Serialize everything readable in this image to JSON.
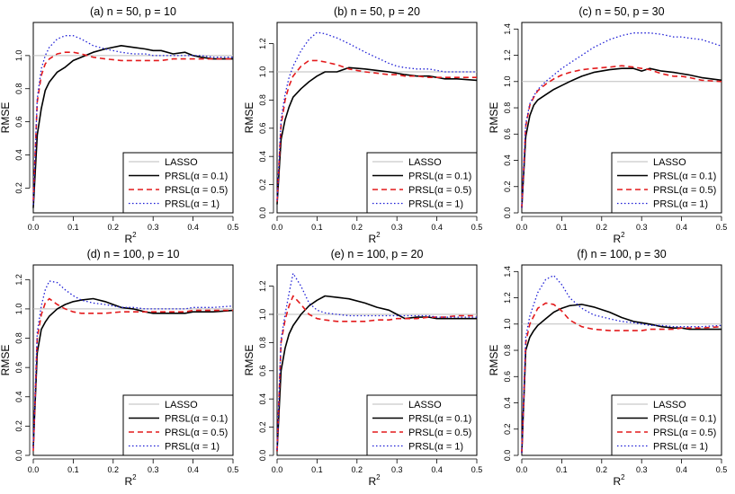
{
  "figure": {
    "description_free": true
  },
  "legend_labels": [
    "LASSO",
    "PRSL(α = 0.1)",
    "PRSL(α = 0.5)",
    "PRSL(α = 1)"
  ],
  "colors": {
    "lasso": "#bdbdbd",
    "a01": "#000000",
    "a05": "#e31a1c",
    "a1": "#1f1fd6",
    "axis": "#000000"
  },
  "chart_data": [
    {
      "type": "line",
      "title": "(a)  n = 50,  p = 10",
      "xlabel": "R²",
      "ylabel": "RMSE",
      "xlim": [
        0,
        0.5
      ],
      "ylim": [
        0.05,
        1.2
      ],
      "xticks": [
        0.0,
        0.1,
        0.2,
        0.3,
        0.4,
        0.5
      ],
      "yticks": [
        0.2,
        0.4,
        0.6,
        0.8,
        1.0
      ],
      "x": [
        0.0,
        0.01,
        0.02,
        0.03,
        0.04,
        0.06,
        0.08,
        0.1,
        0.12,
        0.15,
        0.18,
        0.22,
        0.25,
        0.28,
        0.3,
        0.32,
        0.35,
        0.38,
        0.4,
        0.42,
        0.45,
        0.5
      ],
      "series": [
        {
          "name": "LASSO",
          "values": [
            1,
            1,
            1,
            1,
            1,
            1,
            1,
            1,
            1,
            1,
            1,
            1,
            1,
            1,
            1,
            1,
            1,
            1,
            1,
            1,
            1,
            1
          ]
        },
        {
          "name": "PRSL(α = 0.1)",
          "values": [
            0.08,
            0.52,
            0.68,
            0.79,
            0.84,
            0.9,
            0.93,
            0.97,
            0.99,
            1.02,
            1.04,
            1.06,
            1.05,
            1.04,
            1.03,
            1.03,
            1.01,
            1.02,
            1.0,
            0.99,
            0.98,
            0.98
          ]
        },
        {
          "name": "PRSL(α = 0.5)",
          "values": [
            0.12,
            0.72,
            0.88,
            0.95,
            0.98,
            1.01,
            1.02,
            1.02,
            1.01,
            0.99,
            0.98,
            0.97,
            0.97,
            0.97,
            0.97,
            0.97,
            0.98,
            0.98,
            0.98,
            0.98,
            0.98,
            0.98
          ]
        },
        {
          "name": "PRSL(α = 1)",
          "values": [
            0.1,
            0.74,
            0.92,
            1.0,
            1.05,
            1.1,
            1.12,
            1.12,
            1.1,
            1.06,
            1.04,
            1.02,
            1.01,
            1.01,
            1.0,
            1.0,
            1.0,
            1.0,
            1.0,
            1.0,
            0.99,
            0.99
          ]
        }
      ]
    },
    {
      "type": "line",
      "title": "(b)  n = 50,  p = 20",
      "xlabel": "R²",
      "ylabel": "RMSE",
      "xlim": [
        0,
        0.5
      ],
      "ylim": [
        0,
        1.35
      ],
      "xticks": [
        0.0,
        0.1,
        0.2,
        0.3,
        0.4,
        0.5
      ],
      "yticks": [
        0.0,
        0.2,
        0.4,
        0.6,
        0.8,
        1.0,
        1.2
      ],
      "x": [
        0.0,
        0.01,
        0.02,
        0.03,
        0.04,
        0.06,
        0.08,
        0.1,
        0.12,
        0.15,
        0.18,
        0.22,
        0.25,
        0.28,
        0.3,
        0.32,
        0.35,
        0.38,
        0.4,
        0.42,
        0.45,
        0.5
      ],
      "series": [
        {
          "name": "LASSO",
          "values": [
            1,
            1,
            1,
            1,
            1,
            1,
            1,
            1,
            1,
            1,
            1,
            1,
            1,
            1,
            1,
            1,
            1,
            1,
            1,
            1,
            1,
            1
          ]
        },
        {
          "name": "PRSL(α = 0.1)",
          "values": [
            0.06,
            0.52,
            0.66,
            0.75,
            0.82,
            0.88,
            0.93,
            0.97,
            1.0,
            1.0,
            1.03,
            1.02,
            1.01,
            1.0,
            0.99,
            0.98,
            0.97,
            0.97,
            0.96,
            0.95,
            0.95,
            0.94
          ]
        },
        {
          "name": "PRSL(α = 0.5)",
          "values": [
            0.08,
            0.62,
            0.8,
            0.9,
            0.97,
            1.04,
            1.08,
            1.08,
            1.07,
            1.05,
            1.02,
            1.0,
            0.99,
            0.98,
            0.98,
            0.97,
            0.97,
            0.96,
            0.96,
            0.96,
            0.96,
            0.96
          ]
        },
        {
          "name": "PRSL(α = 1)",
          "values": [
            0.09,
            0.66,
            0.84,
            0.96,
            1.04,
            1.15,
            1.23,
            1.28,
            1.27,
            1.24,
            1.2,
            1.14,
            1.1,
            1.06,
            1.04,
            1.03,
            1.02,
            1.02,
            1.01,
            1.0,
            1.0,
            1.0
          ]
        }
      ]
    },
    {
      "type": "line",
      "title": "(c)  n = 50,  p = 30",
      "xlabel": "R²",
      "ylabel": "RMSE",
      "xlim": [
        0,
        0.5
      ],
      "ylim": [
        0,
        1.45
      ],
      "xticks": [
        0.0,
        0.1,
        0.2,
        0.3,
        0.4,
        0.5
      ],
      "yticks": [
        0.0,
        0.2,
        0.4,
        0.6,
        0.8,
        1.0,
        1.2,
        1.4
      ],
      "x": [
        0.0,
        0.01,
        0.02,
        0.03,
        0.04,
        0.06,
        0.08,
        0.1,
        0.12,
        0.15,
        0.18,
        0.22,
        0.25,
        0.28,
        0.3,
        0.32,
        0.35,
        0.38,
        0.4,
        0.42,
        0.45,
        0.5
      ],
      "series": [
        {
          "name": "LASSO",
          "values": [
            1,
            1,
            1,
            1,
            1,
            1,
            1,
            1,
            1,
            1,
            1,
            1,
            1,
            1,
            1,
            1,
            1,
            1,
            1,
            1,
            1,
            1
          ]
        },
        {
          "name": "PRSL(α = 0.1)",
          "values": [
            0.04,
            0.58,
            0.74,
            0.82,
            0.86,
            0.9,
            0.94,
            0.97,
            1.0,
            1.04,
            1.07,
            1.09,
            1.1,
            1.1,
            1.08,
            1.1,
            1.08,
            1.07,
            1.06,
            1.05,
            1.03,
            1.01
          ]
        },
        {
          "name": "PRSL(α = 0.5)",
          "values": [
            0.04,
            0.66,
            0.82,
            0.88,
            0.93,
            0.98,
            1.02,
            1.05,
            1.07,
            1.09,
            1.1,
            1.11,
            1.12,
            1.11,
            1.1,
            1.09,
            1.06,
            1.04,
            1.04,
            1.03,
            1.01,
            1.0
          ]
        },
        {
          "name": "PRSL(α = 1)",
          "values": [
            0.04,
            0.68,
            0.83,
            0.89,
            0.94,
            1.0,
            1.05,
            1.1,
            1.14,
            1.2,
            1.26,
            1.32,
            1.35,
            1.37,
            1.37,
            1.37,
            1.36,
            1.34,
            1.34,
            1.33,
            1.32,
            1.27
          ]
        }
      ]
    },
    {
      "type": "line",
      "title": "(d)  n = 100,  p = 10",
      "xlabel": "R²",
      "ylabel": "RMSE",
      "xlim": [
        0,
        0.5
      ],
      "ylim": [
        0,
        1.3
      ],
      "xticks": [
        0.0,
        0.1,
        0.2,
        0.3,
        0.4,
        0.5
      ],
      "yticks": [
        0.0,
        0.2,
        0.4,
        0.6,
        0.8,
        1.0,
        1.2
      ],
      "x": [
        0.0,
        0.01,
        0.02,
        0.03,
        0.04,
        0.06,
        0.08,
        0.1,
        0.12,
        0.15,
        0.18,
        0.22,
        0.25,
        0.28,
        0.3,
        0.32,
        0.35,
        0.38,
        0.4,
        0.42,
        0.45,
        0.5
      ],
      "series": [
        {
          "name": "LASSO",
          "values": [
            1,
            1,
            1,
            1,
            1,
            1,
            1,
            1,
            1,
            1,
            1,
            1,
            1,
            1,
            1,
            1,
            1,
            1,
            1,
            1,
            1,
            1
          ]
        },
        {
          "name": "PRSL(α = 0.1)",
          "values": [
            0.06,
            0.7,
            0.86,
            0.91,
            0.95,
            1.0,
            1.03,
            1.05,
            1.06,
            1.07,
            1.05,
            1.01,
            1.0,
            0.98,
            0.97,
            0.97,
            0.97,
            0.97,
            0.98,
            0.98,
            0.98,
            0.99
          ]
        },
        {
          "name": "PRSL(α = 0.5)",
          "values": [
            0.03,
            0.8,
            0.96,
            1.04,
            1.07,
            1.03,
            1.0,
            0.98,
            0.97,
            0.97,
            0.97,
            0.98,
            0.98,
            0.98,
            0.98,
            0.98,
            0.98,
            0.98,
            0.99,
            0.99,
            0.99,
            0.99
          ]
        },
        {
          "name": "PRSL(α = 1)",
          "values": [
            0.05,
            0.84,
            1.02,
            1.13,
            1.19,
            1.18,
            1.13,
            1.09,
            1.06,
            1.04,
            1.03,
            1.01,
            1.01,
            1.0,
            1.0,
            1.0,
            1.0,
            1.0,
            1.01,
            1.01,
            1.01,
            1.02
          ]
        }
      ]
    },
    {
      "type": "line",
      "title": "(e)  n = 100,  p = 20",
      "xlabel": "R²",
      "ylabel": "RMSE",
      "xlim": [
        0,
        0.5
      ],
      "ylim": [
        0,
        1.35
      ],
      "xticks": [
        0.0,
        0.1,
        0.2,
        0.3,
        0.4,
        0.5
      ],
      "yticks": [
        0.0,
        0.2,
        0.4,
        0.6,
        0.8,
        1.0,
        1.2
      ],
      "x": [
        0.0,
        0.01,
        0.02,
        0.03,
        0.04,
        0.06,
        0.08,
        0.1,
        0.12,
        0.15,
        0.18,
        0.22,
        0.25,
        0.28,
        0.3,
        0.32,
        0.35,
        0.38,
        0.4,
        0.42,
        0.45,
        0.5
      ],
      "series": [
        {
          "name": "LASSO",
          "values": [
            1,
            1,
            1,
            1,
            1,
            1,
            1,
            1,
            1,
            1,
            1,
            1,
            1,
            1,
            1,
            1,
            1,
            1,
            1,
            1,
            1,
            1
          ]
        },
        {
          "name": "PRSL(α = 0.1)",
          "values": [
            0.03,
            0.6,
            0.76,
            0.86,
            0.92,
            1.0,
            1.06,
            1.1,
            1.13,
            1.12,
            1.11,
            1.08,
            1.05,
            1.03,
            1.0,
            0.97,
            0.98,
            0.98,
            0.97,
            0.97,
            0.97,
            0.97
          ]
        },
        {
          "name": "PRSL(α = 0.5)",
          "values": [
            0.03,
            0.8,
            0.96,
            1.06,
            1.13,
            1.07,
            1.0,
            0.97,
            0.96,
            0.95,
            0.95,
            0.95,
            0.96,
            0.96,
            0.97,
            0.97,
            0.97,
            0.98,
            0.98,
            0.98,
            0.99,
            0.99
          ]
        },
        {
          "name": "PRSL(α = 1)",
          "values": [
            0.04,
            0.82,
            1.0,
            1.15,
            1.29,
            1.2,
            1.08,
            1.03,
            1.01,
            1.0,
            0.99,
            0.99,
            0.99,
            0.99,
            0.99,
            0.99,
            0.99,
            0.99,
            0.98,
            0.98,
            0.98,
            0.98
          ]
        }
      ]
    },
    {
      "type": "line",
      "title": "(f)  n = 100,  p = 30",
      "xlabel": "R²",
      "ylabel": "RMSE",
      "xlim": [
        0,
        0.5
      ],
      "ylim": [
        0,
        1.45
      ],
      "xticks": [
        0.0,
        0.1,
        0.2,
        0.3,
        0.4,
        0.5
      ],
      "yticks": [
        0.0,
        0.2,
        0.4,
        0.6,
        0.8,
        1.0,
        1.2,
        1.4
      ],
      "x": [
        0.0,
        0.01,
        0.02,
        0.03,
        0.04,
        0.06,
        0.08,
        0.1,
        0.12,
        0.15,
        0.18,
        0.22,
        0.25,
        0.28,
        0.3,
        0.32,
        0.35,
        0.38,
        0.4,
        0.42,
        0.45,
        0.5
      ],
      "series": [
        {
          "name": "LASSO",
          "values": [
            1,
            1,
            1,
            1,
            1,
            1,
            1,
            1,
            1,
            1,
            1,
            1,
            1,
            1,
            1,
            1,
            1,
            1,
            1,
            1,
            1,
            1
          ]
        },
        {
          "name": "PRSL(α = 0.1)",
          "values": [
            0.02,
            0.8,
            0.9,
            0.95,
            0.99,
            1.04,
            1.09,
            1.12,
            1.14,
            1.15,
            1.13,
            1.09,
            1.05,
            1.02,
            1.01,
            1.0,
            0.98,
            0.97,
            0.97,
            0.96,
            0.96,
            0.96
          ]
        },
        {
          "name": "PRSL(α = 0.5)",
          "values": [
            0.02,
            0.86,
            1.0,
            1.06,
            1.12,
            1.16,
            1.15,
            1.1,
            1.03,
            0.98,
            0.96,
            0.95,
            0.95,
            0.95,
            0.95,
            0.96,
            0.96,
            0.96,
            0.97,
            0.97,
            0.97,
            0.98
          ]
        },
        {
          "name": "PRSL(α = 1)",
          "values": [
            0.02,
            0.9,
            1.06,
            1.15,
            1.24,
            1.34,
            1.37,
            1.3,
            1.2,
            1.12,
            1.07,
            1.04,
            1.02,
            1.01,
            1.0,
            0.99,
            0.99,
            0.98,
            0.98,
            0.98,
            0.98,
            0.99
          ]
        }
      ]
    }
  ]
}
